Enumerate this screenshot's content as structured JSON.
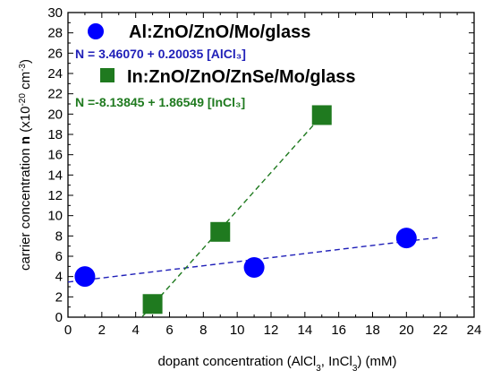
{
  "chart_data": {
    "type": "scatter",
    "xlabel": "dopant concentration (AlCl₃, InCl₃) (mM)",
    "ylabel": "carrier concentration n (×10⁻²⁰ cm⁻³)",
    "xlim": [
      0,
      24
    ],
    "ylim": [
      0,
      30
    ],
    "x_ticks": [
      0,
      2,
      4,
      6,
      8,
      10,
      12,
      14,
      16,
      18,
      20,
      22,
      24
    ],
    "y_ticks": [
      0,
      2,
      4,
      6,
      8,
      10,
      12,
      14,
      16,
      18,
      20,
      22,
      24,
      26,
      28,
      30
    ],
    "grid": false,
    "legend_position": "top-left",
    "series": [
      {
        "name": "Al:ZnO/ZnO/Mo/glass",
        "marker": "circle",
        "color": "#0000ff",
        "x": [
          1,
          11,
          20
        ],
        "y": [
          4.0,
          4.9,
          7.8
        ],
        "fit": {
          "label": "N = 3.46070 + 0.20035 [AlCl₃]",
          "intercept": 3.4607,
          "slope": 0.20035,
          "x_range": [
            0,
            22
          ],
          "color": "#1f1fb8"
        }
      },
      {
        "name": "In:ZnO/ZnO/ZnSe/Mo/glass",
        "marker": "square",
        "color": "#1f7a1f",
        "x": [
          5,
          9,
          15
        ],
        "y": [
          1.3,
          8.4,
          19.9
        ],
        "fit": {
          "label": "N =-8.13845 + 1.86549 [InCl₃]",
          "intercept": -8.13845,
          "slope": 1.86549,
          "x_range": [
            4.4,
            15
          ],
          "color": "#1f7a1f"
        }
      }
    ]
  }
}
